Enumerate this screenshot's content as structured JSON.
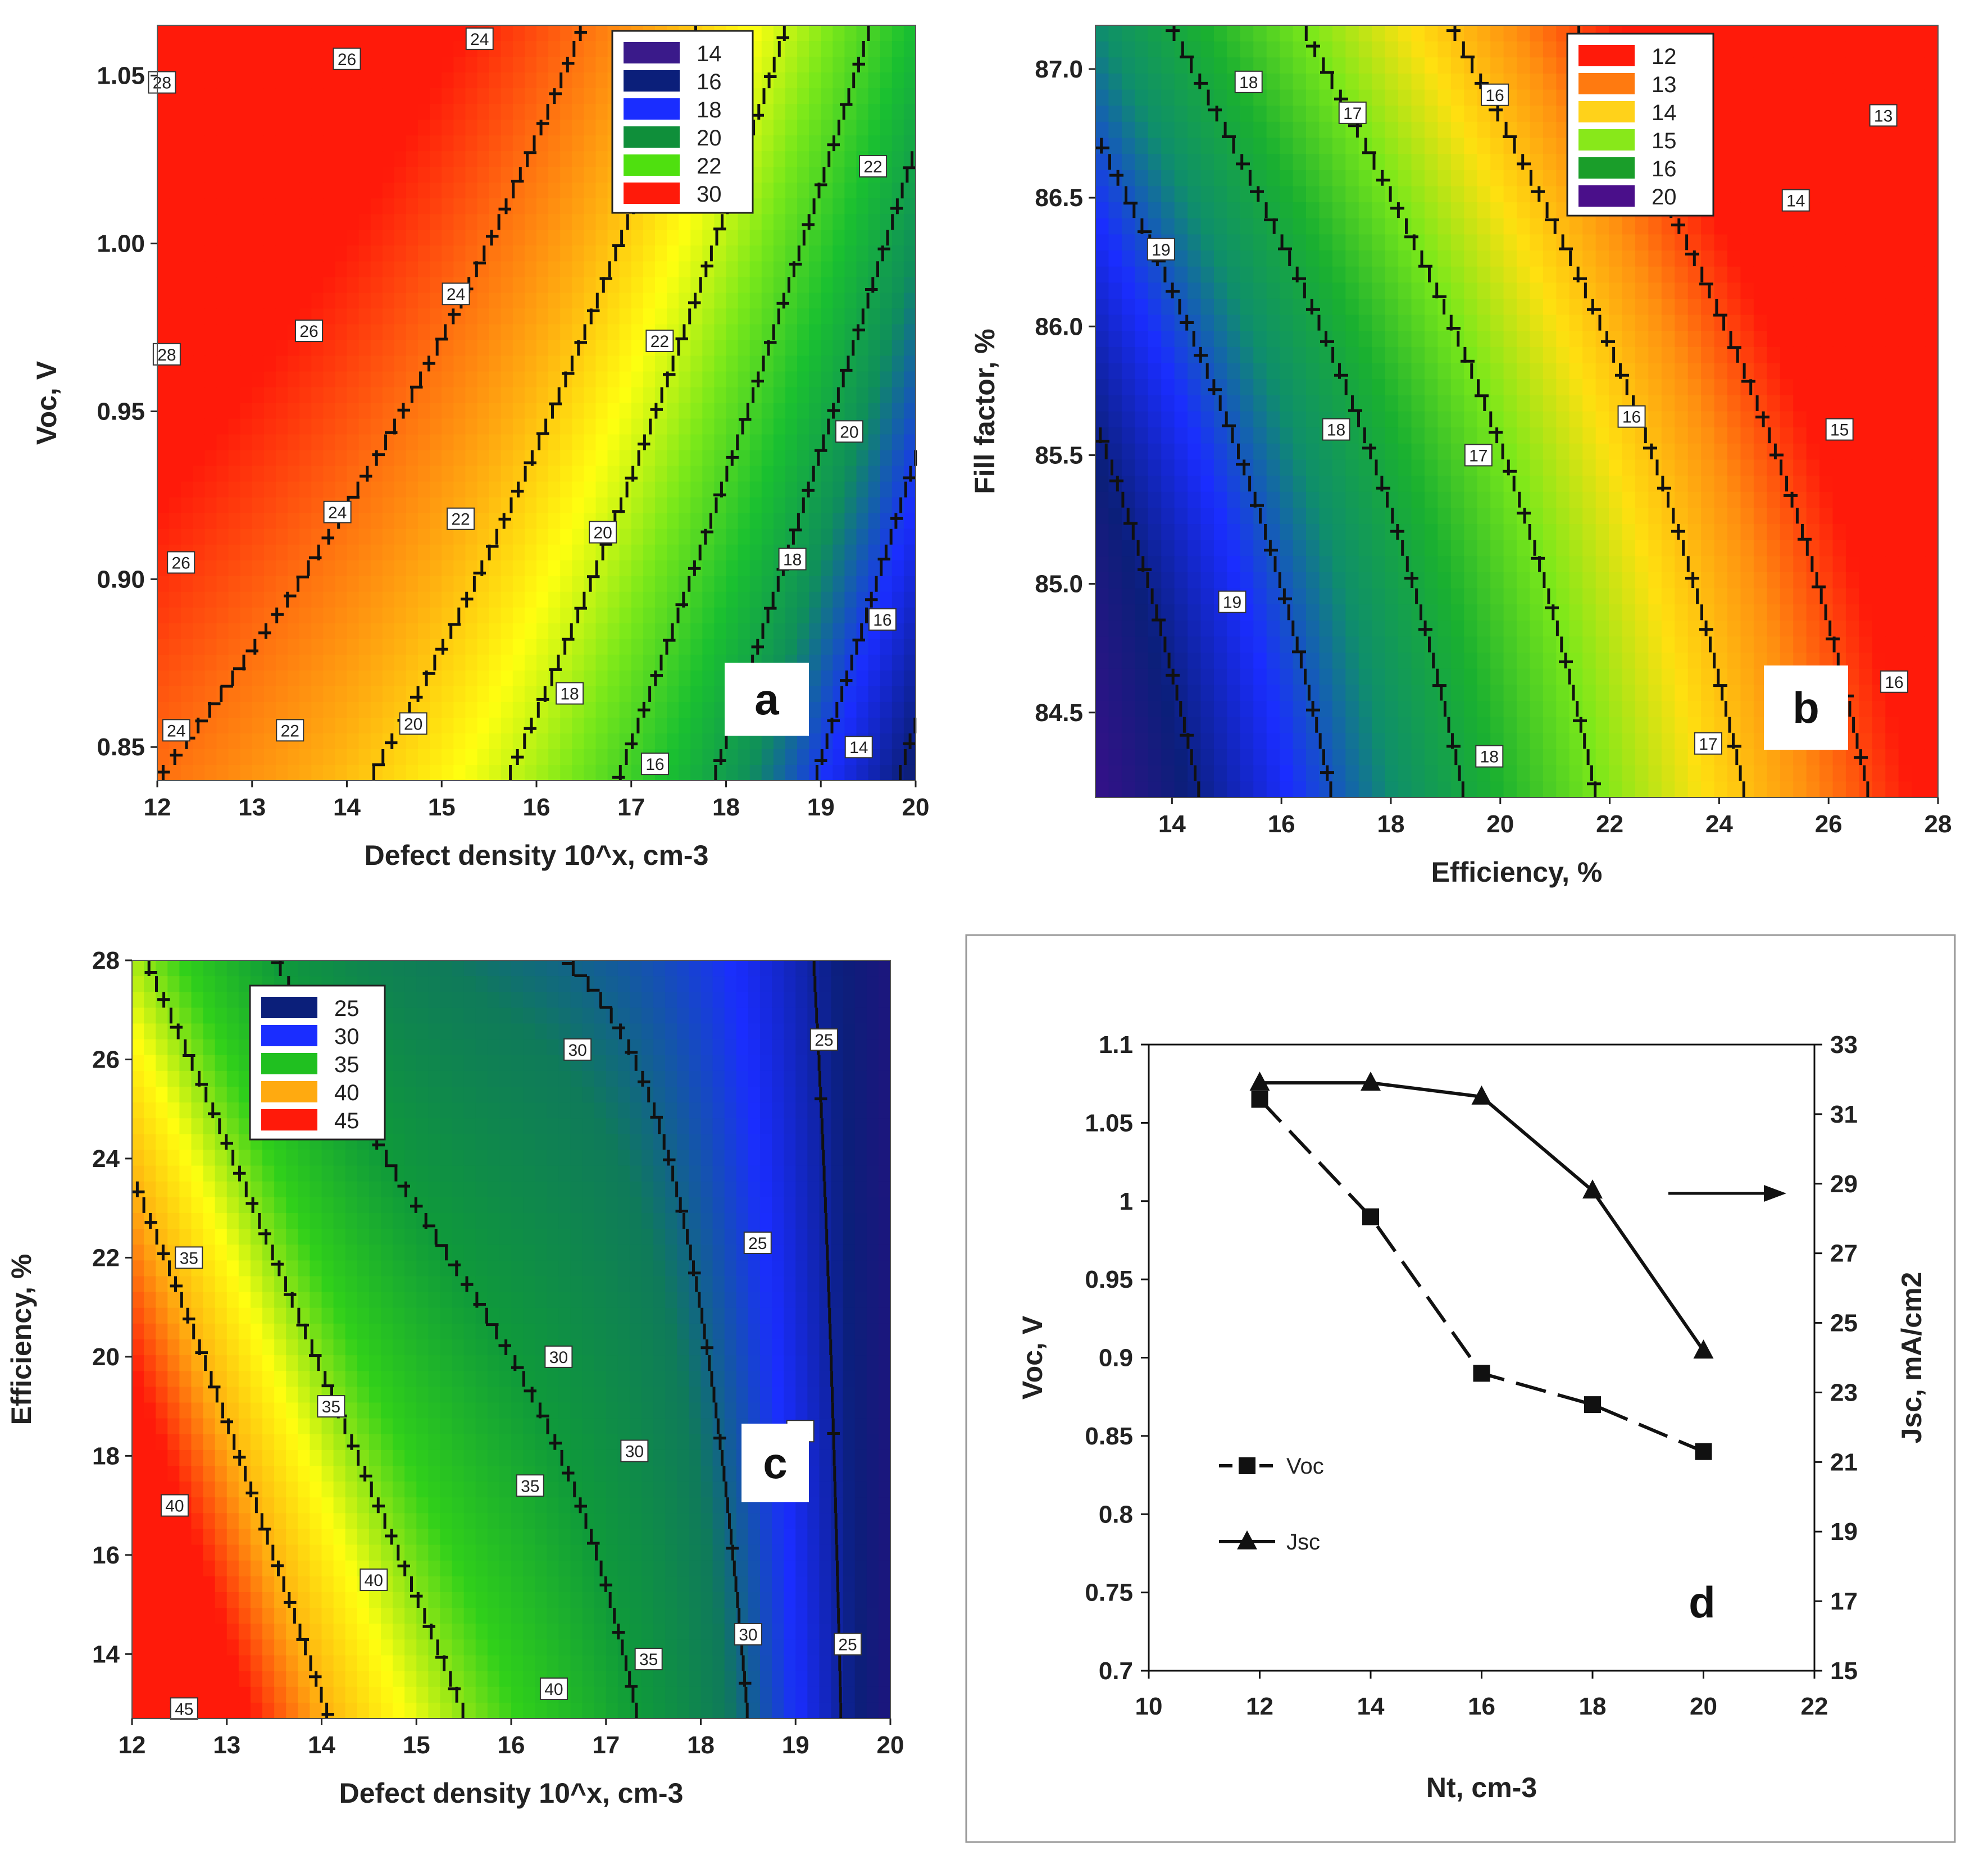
{
  "chart_data": [
    {
      "type": "heatmap",
      "panel_letter": "a",
      "xlabel": "Defect density 10^x, cm-3",
      "ylabel": "Voc, V",
      "xlim": [
        12,
        20
      ],
      "ylim": [
        0.84,
        1.065
      ],
      "xticks": [
        "12",
        "13",
        "14",
        "15",
        "16",
        "17",
        "18",
        "19",
        "20"
      ],
      "yticks": [
        "0.85",
        "0.90",
        "0.95",
        "1.00",
        "1.05"
      ],
      "legend": {
        "position": "top-right",
        "entries": [
          {
            "label": "14",
            "color": "#3a1a8a"
          },
          {
            "label": "16",
            "color": "#0b1f7a"
          },
          {
            "label": "18",
            "color": "#1a2dff"
          },
          {
            "label": "20",
            "color": "#0f8f3a"
          },
          {
            "label": "22",
            "color": "#4fe00f"
          },
          {
            "label": "30",
            "color": "#ff1a0a"
          }
        ]
      },
      "contour_labels": [
        {
          "text": "28",
          "x": 12.05,
          "y": 1.048
        },
        {
          "text": "28",
          "x": 12.1,
          "y": 0.967
        },
        {
          "text": "26",
          "x": 14.0,
          "y": 1.055
        },
        {
          "text": "26",
          "x": 13.6,
          "y": 0.974
        },
        {
          "text": "26",
          "x": 12.25,
          "y": 0.905
        },
        {
          "text": "24",
          "x": 15.4,
          "y": 1.061
        },
        {
          "text": "24",
          "x": 15.15,
          "y": 0.985
        },
        {
          "text": "24",
          "x": 13.9,
          "y": 0.92
        },
        {
          "text": "24",
          "x": 12.2,
          "y": 0.855
        },
        {
          "text": "22",
          "x": 19.55,
          "y": 1.023
        },
        {
          "text": "22",
          "x": 17.3,
          "y": 0.971
        },
        {
          "text": "22",
          "x": 15.2,
          "y": 0.918
        },
        {
          "text": "22",
          "x": 13.4,
          "y": 0.855
        },
        {
          "text": "20",
          "x": 19.3,
          "y": 0.944
        },
        {
          "text": "20",
          "x": 16.7,
          "y": 0.914
        },
        {
          "text": "20",
          "x": 14.7,
          "y": 0.857
        },
        {
          "text": "18",
          "x": 18.7,
          "y": 0.906
        },
        {
          "text": "18",
          "x": 16.35,
          "y": 0.866
        },
        {
          "text": "16",
          "x": 19.65,
          "y": 0.888
        },
        {
          "text": "16",
          "x": 17.25,
          "y": 0.845
        },
        {
          "text": "14",
          "x": 19.4,
          "y": 0.85
        }
      ]
    },
    {
      "type": "heatmap",
      "panel_letter": "b",
      "xlabel": "Efficiency, %",
      "ylabel": "Fill factor, %",
      "xlim": [
        12.6,
        28
      ],
      "ylim": [
        84.17,
        87.17
      ],
      "xticks": [
        "14",
        "16",
        "18",
        "20",
        "22",
        "24",
        "26",
        "28"
      ],
      "yticks": [
        "84.5",
        "85.0",
        "85.5",
        "86.0",
        "86.5",
        "87.0"
      ],
      "legend": {
        "position": "top-right",
        "entries": [
          {
            "label": "12",
            "color": "#ff1a0a"
          },
          {
            "label": "13",
            "color": "#ff7a10"
          },
          {
            "label": "14",
            "color": "#ffd21a"
          },
          {
            "label": "15",
            "color": "#88e81a"
          },
          {
            "label": "16",
            "color": "#1a9e2a"
          },
          {
            "label": "20",
            "color": "#4a0f8a"
          }
        ]
      },
      "contour_labels": [
        {
          "text": "18",
          "x": 15.4,
          "y": 86.95
        },
        {
          "text": "17",
          "x": 17.3,
          "y": 86.83
        },
        {
          "text": "16",
          "x": 19.9,
          "y": 86.9
        },
        {
          "text": "13",
          "x": 27.0,
          "y": 86.82
        },
        {
          "text": "14",
          "x": 25.4,
          "y": 86.49
        },
        {
          "text": "19",
          "x": 13.8,
          "y": 86.3
        },
        {
          "text": "18",
          "x": 17.0,
          "y": 85.6
        },
        {
          "text": "17",
          "x": 19.6,
          "y": 85.5
        },
        {
          "text": "16",
          "x": 22.4,
          "y": 85.65
        },
        {
          "text": "15",
          "x": 26.2,
          "y": 85.6
        },
        {
          "text": "19",
          "x": 15.1,
          "y": 84.93
        },
        {
          "text": "16",
          "x": 27.2,
          "y": 84.62
        },
        {
          "text": "17",
          "x": 23.8,
          "y": 84.38
        },
        {
          "text": "18",
          "x": 19.8,
          "y": 84.33
        }
      ]
    },
    {
      "type": "heatmap",
      "panel_letter": "c",
      "xlabel": "Defect density 10^x, cm-3",
      "ylabel": "Efficiency, %",
      "xlim": [
        12,
        20
      ],
      "ylim": [
        12.7,
        28
      ],
      "xticks": [
        "12",
        "13",
        "14",
        "15",
        "16",
        "17",
        "18",
        "19",
        "20"
      ],
      "yticks": [
        "14",
        "16",
        "18",
        "20",
        "22",
        "24",
        "26",
        "28"
      ],
      "legend": {
        "position": "top-left",
        "entries": [
          {
            "label": "25",
            "color": "#0b1f7a"
          },
          {
            "label": "30",
            "color": "#1a2dff"
          },
          {
            "label": "35",
            "color": "#20c020"
          },
          {
            "label": "40",
            "color": "#ffaa10"
          },
          {
            "label": "45",
            "color": "#ff1a0a"
          }
        ]
      },
      "contour_labels": [
        {
          "text": "30",
          "x": 16.7,
          "y": 26.2
        },
        {
          "text": "25",
          "x": 19.3,
          "y": 26.4
        },
        {
          "text": "35",
          "x": 12.6,
          "y": 22.0
        },
        {
          "text": "30",
          "x": 16.5,
          "y": 20.0
        },
        {
          "text": "25",
          "x": 18.6,
          "y": 22.3
        },
        {
          "text": "35",
          "x": 14.1,
          "y": 19.0
        },
        {
          "text": "30",
          "x": 17.3,
          "y": 18.1
        },
        {
          "text": "25",
          "x": 19.05,
          "y": 18.5
        },
        {
          "text": "35",
          "x": 16.2,
          "y": 17.4
        },
        {
          "text": "40",
          "x": 12.45,
          "y": 17.0
        },
        {
          "text": "40",
          "x": 14.55,
          "y": 15.5
        },
        {
          "text": "30",
          "x": 18.5,
          "y": 14.4
        },
        {
          "text": "35",
          "x": 17.45,
          "y": 13.9
        },
        {
          "text": "25",
          "x": 19.55,
          "y": 14.2
        },
        {
          "text": "40",
          "x": 16.45,
          "y": 13.3
        },
        {
          "text": "45",
          "x": 12.55,
          "y": 12.9
        }
      ]
    },
    {
      "type": "line",
      "panel_letter": "d",
      "xlabel": "Nt, cm-3",
      "ylabel": "Voc, V",
      "y2label": "Jsc, mA/cm2",
      "xlim": [
        10,
        22
      ],
      "ylim": [
        0.7,
        1.1
      ],
      "y2lim": [
        15,
        33
      ],
      "xticks": [
        "10",
        "12",
        "14",
        "16",
        "18",
        "20",
        "22"
      ],
      "yticks": [
        "0.7",
        "0.75",
        "0.8",
        "0.85",
        "0.9",
        "0.95",
        "1",
        "1.05",
        "1.1"
      ],
      "y2ticks": [
        "15",
        "17",
        "19",
        "21",
        "23",
        "25",
        "27",
        "29",
        "31",
        "33"
      ],
      "x": [
        12,
        14,
        16,
        18,
        20
      ],
      "series": [
        {
          "name": "Voc",
          "axis": "left",
          "marker": "square",
          "dash": "dashed",
          "values": [
            1.065,
            0.99,
            0.89,
            0.87,
            0.84
          ]
        },
        {
          "name": "Jsc",
          "axis": "right",
          "marker": "triangle",
          "dash": "solid",
          "values": [
            31.9,
            31.9,
            31.5,
            28.8,
            24.2
          ]
        }
      ],
      "annotation": "arrow pointing to right axis"
    }
  ]
}
